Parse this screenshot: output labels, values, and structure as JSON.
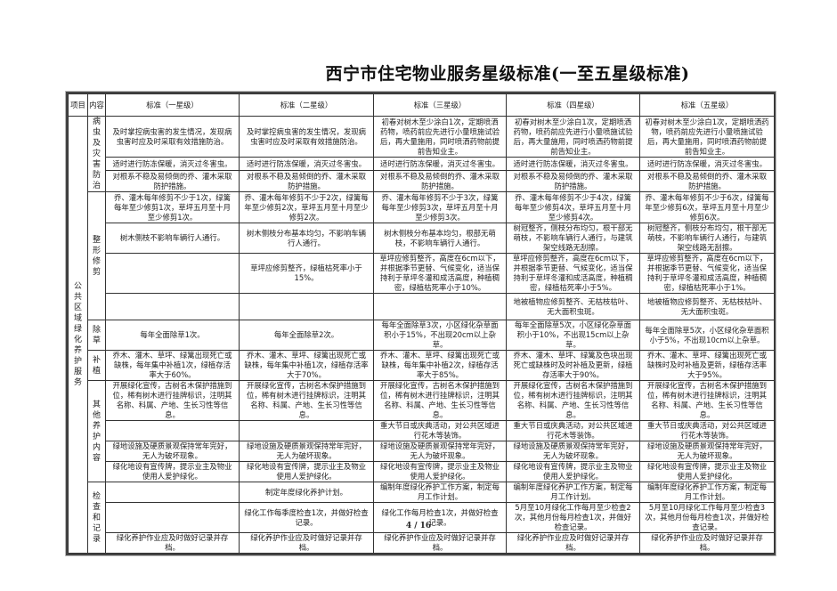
{
  "title": "西宁市住宅物业服务星级标准(一至五星级标准)",
  "page_number": "4 / 16",
  "header": {
    "item": "项目",
    "content": "内容",
    "levels": [
      "标准（一星级）",
      "标准（二星级）",
      "标准（三星级）",
      "标准（四星级）",
      "标准（五星级）"
    ]
  },
  "project": "公共区域绿化养护服务",
  "groups": [
    {
      "label": "病虫及灾害防治",
      "rows": [
        [
          "及时掌控病虫害的发生情况，发现病虫害时应及时采取有效措施防治。",
          "及时掌控病虫害的发生情况，发现病虫害时应及时采取有效措施防治。",
          "初春对树木至少涂白1次，定期喷洒药物，喷药前应先进行小量喷施试验后，再大量施用，同时喷洒药物前提前告知业主。",
          "初春对树木至少涂白1次，定期喷洒药物，喷药前应先进行小量喷施试验后，再大量施用，同时喷洒药物前提前告知业主。",
          "初春对树木至少涂白1次，定期喷洒药物，喷药前应先进行小量喷施试验后，再大量施用，同时喷洒药物前提前告知业主。"
        ],
        [
          "适时进行防冻保暖，消灭过冬害虫。",
          "适时进行防冻保暖，消灭过冬害虫。",
          "适时进行防冻保暖，消灭过冬害虫。",
          "适时进行防冻保暖，消灭过冬害虫。",
          "适时进行防冻保暖，消灭过冬害虫。"
        ],
        [
          "对根系不稳及易倾倒的乔、灌木采取防护措施。",
          "对根系不稳及易倾倒的乔、灌木采取防护措施。",
          "对根系不稳及易倾倒的乔、灌木采取防护措施。",
          "对根系不稳及易倾倒的乔、灌木采取防护措施。",
          "对根系不稳及易倾倒的乔、灌木采取防护措施。"
        ]
      ]
    },
    {
      "label": "整形修剪",
      "rows": [
        [
          "乔、灌木每年修剪不少于1次，绿篱每年至少修剪1次，草坪五月至十月至少修剪1次。",
          "乔、灌木每年修剪不少于2次，绿篱每年至少修剪2次，草坪五月至十月至少修剪2次。",
          "乔、灌木每年修剪不少于3次，绿篱每年至少修剪3次，草坪五月至十月至少修剪3次。",
          "乔、灌木每年修剪不少于4次，绿篱每年至少修剪4次，草坪五月至十月至少修剪4次。",
          "乔、灌木每年修剪不少于6次，绿篱每年至少修剪6次，草坪五月至十月至少修剪6次。"
        ],
        [
          "树木侧枝不影响车辆行人通行。",
          "树木侧枝分布基本均匀，不影响车辆行人通行。",
          "树木侧枝分布基本均匀，根部无萌枝，不影响车辆行人通行。",
          "树冠整齐，侧枝分布均匀，根干部无萌枝，不影响车辆行人通行，与建筑架空线路无刮擦。",
          "树冠整齐，侧枝分布均匀，根干部无萌枝，不影响车辆行人通行，与建筑架空线路无刮擦。"
        ],
        [
          "",
          "草坪应修剪整齐，绿植枯死率小于15%。",
          "草坪应修剪整齐，高度在6cm以下，并根据季节更替、气候变化，适当保持利于草坪冬灌和成活高度，种植稠密，绿植枯死率小于10%。",
          "草坪应修剪整齐，高度在6cm以下，并根据季节更替、气候变化，适当保持利于草坪冬灌和成活高度，种植稠密，绿植枯死率小于5%。",
          "草坪应修剪整齐，高度在6cm以下，并根据季节更替、气候变化，适当保持利于草坪冬灌和成活高度，种植稠密，绿植枯死率小于1%。"
        ],
        [
          "",
          "",
          "",
          "地被植物应修剪整齐、无枯枝枯叶、无大面积虫斑。",
          "地被植物应修剪整齐、无枯枝枯叶、无大面积虫斑。"
        ]
      ]
    },
    {
      "label": "除草",
      "rows": [
        [
          "每年全面除草1次。",
          "每年全面除草2次。",
          "每年全面除草3次，小区绿化杂草面积小于15%，不出现20cm以上杂草。",
          "每年全面除草5次，小区绿化杂草面积小于10%，不出现15cm以上杂草。",
          "每年全面除草5次，小区绿化杂草面积小于5%，不出现10cm以上杂草。"
        ]
      ]
    },
    {
      "label": "补植",
      "rows": [
        [
          "乔木、灌木、草坪、绿篱出现死亡或缺株，每年集中补植1次，绿植存活率大于60%。",
          "乔木、灌木、草坪、绿篱出现死亡或缺株，每年集中补植1次，绿植存活率大于70%。",
          "乔木、灌木、草坪、绿篱出现死亡或缺株，每年集中补植2次，绿植存活率大于85%。",
          "乔木、灌木、草坪、绿篱及色块出现死亡或缺株时及时补植及更新，绿植存活率大于90%。",
          "乔木、灌木、草坪、绿篱出现死亡或缺株时及时补植及更新，绿植存活率大于95%。"
        ]
      ]
    },
    {
      "label": "其他养护内容",
      "rows": [
        [
          "开展绿化宣传，古树名木保护措施到位，稀有树木进行挂牌标识，注明其名称、科属、产地、生长习性等信息。",
          "开展绿化宣传，古树名木保护措施到位，稀有树木进行挂牌标识，注明其名称、科属、产地、生长习性等信息。",
          "开展绿化宣传，古树名木保护措施到位，稀有树木进行挂牌标识，注明其名称、科属、产地、生长习性等信息。",
          "开展绿化宣传，古树名木保护措施到位，稀有树木进行挂牌标识，注明其名称、科属、产地、生长习性等信息。",
          "开展绿化宣传，古树名木保护措施到位，稀有树木进行挂牌标识，注明其名称、科属、产地、生长习性等信息。"
        ],
        [
          "",
          "",
          "重大节日或庆典活动，对公共区域进行花木等装饰。",
          "重大节日或庆典活动，对公共区域进行花木等装饰。",
          "重大节日或庆典活动，对公共区域进行花木等装饰。"
        ],
        [
          "绿地设施及硬质景观保持常年完好，无人为破坏现象。",
          "绿地设施及硬质景观保持常年完好，无人为破坏现象。",
          "绿地设施及硬质景观保持常年完好，无人为破坏现象。",
          "绿地设施及硬质景观保持常年完好，无人为破坏现象。",
          "绿地设施及硬质景观保持常年完好，无人为破坏现象。"
        ],
        [
          "绿化地设有宣传牌，提示业主及物业使用人爱护绿化。",
          "绿化地设有宣传牌，提示业主及物业使用人爱护绿化。",
          "绿化地设有宣传牌，提示业主及物业使用人爱护绿化。",
          "绿化地设有宣传牌，提示业主及物业使用人爱护绿化。",
          "绿化地设有宣传牌，提示业主及物业使用人爱护绿化。"
        ]
      ]
    },
    {
      "label": "检查和记录",
      "rows": [
        [
          "",
          "制定年度绿化养护计划。",
          "编制年度绿化养护工作方案，制定每月工作计划。",
          "编制年度绿化养护工作方案，制定每月工作计划。",
          "编制年度绿化养护工作方案，制定每月工作计划。"
        ],
        [
          "",
          "绿化工作每季度检查1次，并做好检查记录。",
          "绿化工作每月检查1次，并做好检查记录。",
          "5月至10月绿化工作每月至少检查2次，其他月份每月检查1次，并做好检查记录。",
          "5月至10月绿化工作每月至少检查3次，其他月份每月检查1次，并做好检查记录。"
        ],
        [
          "绿化养护作业应及时做好记录并存档。",
          "绿化养护作业应及时做好记录并存档。",
          "绿化养护作业应及时做好记录并存档。",
          "绿化养护作业应及时做好记录并存档。",
          "绿化养护作业应及时做好记录并存档。"
        ]
      ]
    }
  ]
}
